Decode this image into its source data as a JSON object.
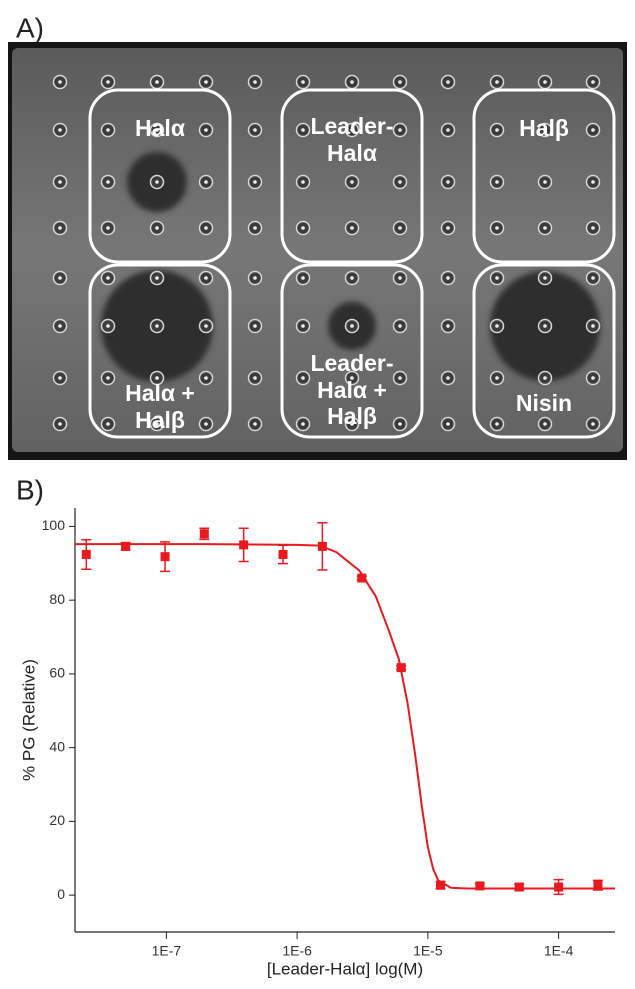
{
  "panel_a": {
    "label": "A)",
    "boxes": [
      {
        "lines": [
          "Halα"
        ]
      },
      {
        "lines": [
          "Leader-",
          "Halα"
        ]
      },
      {
        "lines": [
          "Halβ"
        ]
      },
      {
        "lines": [
          "Halα +",
          "Halβ"
        ]
      },
      {
        "lines": [
          "Leader-",
          "Halα +",
          "Halβ"
        ]
      },
      {
        "lines": [
          "Nisin"
        ]
      }
    ]
  },
  "panel_b": {
    "label": "B)"
  },
  "chart_data": {
    "type": "scatter",
    "xlabel": "[Leader-Halα] log(M)",
    "ylabel": "% PG (Relative)",
    "xscale": "log",
    "xlim": [
      2e-08,
      0.00027
    ],
    "ylim": [
      -10,
      105
    ],
    "xticks": [
      {
        "value": 1e-07,
        "label": "1E-7"
      },
      {
        "value": 1e-06,
        "label": "1E-6"
      },
      {
        "value": 1e-05,
        "label": "1E-5"
      },
      {
        "value": 0.0001,
        "label": "1E-4"
      }
    ],
    "yticks": [
      0,
      20,
      40,
      60,
      80,
      100
    ],
    "series": [
      {
        "type": "scatter",
        "color": "#e8191f",
        "x": [
          2.44e-08,
          4.88e-08,
          9.77e-08,
          1.95e-07,
          3.9e-07,
          7.8e-07,
          1.56e-06,
          3.125e-06,
          6.25e-06,
          1.25e-05,
          2.5e-05,
          5e-05,
          0.0001,
          0.0002
        ],
        "values": [
          92.4,
          94.6,
          91.8,
          98,
          95,
          92.4,
          94.6,
          86,
          61.7,
          2.7,
          2.5,
          2.2,
          2.2,
          2.7
        ],
        "errors": [
          4,
          1,
          4,
          1.5,
          4.5,
          2.5,
          6.4,
          0.5,
          0.5,
          1,
          0.7,
          0.8,
          2,
          1.3
        ]
      },
      {
        "type": "line",
        "color": "#e8191f",
        "x": [
          2e-08,
          2e-07,
          1e-06,
          1.5e-06,
          2e-06,
          3e-06,
          4e-06,
          5e-06,
          6e-06,
          7e-06,
          8e-06,
          9e-06,
          1e-05,
          1.1e-05,
          1.2e-05,
          1.5e-05,
          2e-05,
          0.00027
        ],
        "values": [
          95.2,
          95.2,
          95,
          94.8,
          93,
          88,
          81,
          72,
          64,
          52,
          38,
          24,
          13,
          7,
          4,
          2,
          1.8,
          1.8
        ]
      }
    ]
  }
}
